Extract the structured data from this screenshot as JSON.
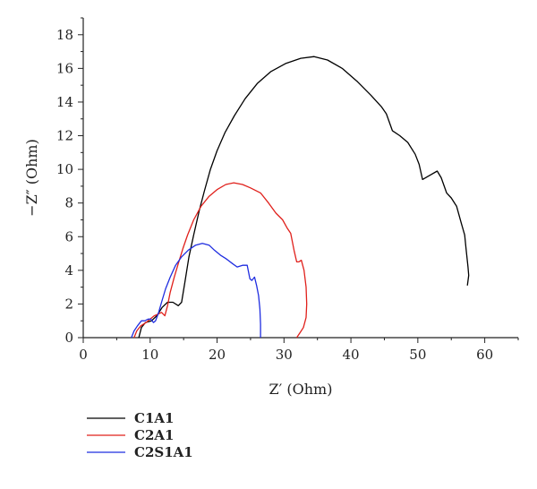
{
  "chart_data": {
    "type": "line",
    "xlabel": "Z′ (Ohm)",
    "ylabel": "−Z″ (Ohm)",
    "xlim": [
      0,
      65
    ],
    "ylim": [
      0,
      19
    ],
    "x_ticks": [
      0,
      10,
      20,
      30,
      40,
      50,
      60
    ],
    "y_ticks": [
      0,
      2,
      4,
      6,
      8,
      10,
      12,
      14,
      16,
      18
    ],
    "grid": false,
    "legend_position": "bottom-left, below plot",
    "series": [
      {
        "name": "C1A1",
        "color": "#000000",
        "points": [
          [
            8.3,
            0
          ],
          [
            8.7,
            0.6
          ],
          [
            9.3,
            0.9
          ],
          [
            10.2,
            1.0
          ],
          [
            11.0,
            1.3
          ],
          [
            11.8,
            1.8
          ],
          [
            12.6,
            2.1
          ],
          [
            13.4,
            2.1
          ],
          [
            14.2,
            1.9
          ],
          [
            14.7,
            2.1
          ],
          [
            15.2,
            3.3
          ],
          [
            15.8,
            4.8
          ],
          [
            16.5,
            6.1
          ],
          [
            17.3,
            7.5
          ],
          [
            18.1,
            8.7
          ],
          [
            19.0,
            10.0
          ],
          [
            20.0,
            11.1
          ],
          [
            21.2,
            12.2
          ],
          [
            22.6,
            13.2
          ],
          [
            24.2,
            14.2
          ],
          [
            26.0,
            15.1
          ],
          [
            28.0,
            15.8
          ],
          [
            30.3,
            16.3
          ],
          [
            32.5,
            16.6
          ],
          [
            34.5,
            16.7
          ],
          [
            36.5,
            16.5
          ],
          [
            38.7,
            16.0
          ],
          [
            41.0,
            15.2
          ],
          [
            43.0,
            14.4
          ],
          [
            44.6,
            13.7
          ],
          [
            45.3,
            13.3
          ],
          [
            46.2,
            12.3
          ],
          [
            47.3,
            12.0
          ],
          [
            48.5,
            11.6
          ],
          [
            49.6,
            10.9
          ],
          [
            50.2,
            10.3
          ],
          [
            50.7,
            9.4
          ],
          [
            51.6,
            9.6
          ],
          [
            52.9,
            9.9
          ],
          [
            53.5,
            9.5
          ],
          [
            54.3,
            8.6
          ],
          [
            55.0,
            8.3
          ],
          [
            55.8,
            7.8
          ],
          [
            56.5,
            6.8
          ],
          [
            57.0,
            6.1
          ],
          [
            57.2,
            5.3
          ],
          [
            57.5,
            4.2
          ],
          [
            57.6,
            3.7
          ],
          [
            57.4,
            3.1
          ]
        ]
      },
      {
        "name": "C2A1",
        "color": "#e0201b",
        "points": [
          [
            7.6,
            0
          ],
          [
            8.0,
            0.4
          ],
          [
            8.6,
            0.7
          ],
          [
            9.4,
            0.9
          ],
          [
            10.0,
            1.1
          ],
          [
            10.6,
            1.3
          ],
          [
            11.2,
            1.4
          ],
          [
            11.7,
            1.5
          ],
          [
            12.2,
            1.3
          ],
          [
            12.6,
            1.9
          ],
          [
            13.0,
            2.7
          ],
          [
            13.6,
            3.6
          ],
          [
            14.2,
            4.4
          ],
          [
            14.9,
            5.3
          ],
          [
            15.6,
            6.1
          ],
          [
            16.5,
            7.0
          ],
          [
            17.6,
            7.8
          ],
          [
            18.8,
            8.4
          ],
          [
            20.0,
            8.8
          ],
          [
            21.3,
            9.1
          ],
          [
            22.5,
            9.2
          ],
          [
            23.8,
            9.1
          ],
          [
            25.0,
            8.9
          ],
          [
            26.5,
            8.6
          ],
          [
            27.7,
            8.0
          ],
          [
            28.8,
            7.4
          ],
          [
            29.8,
            7.0
          ],
          [
            30.5,
            6.5
          ],
          [
            31.0,
            6.2
          ],
          [
            31.5,
            5.2
          ],
          [
            31.9,
            4.5
          ],
          [
            32.2,
            4.5
          ],
          [
            32.6,
            4.6
          ],
          [
            33.0,
            4.0
          ],
          [
            33.3,
            3.0
          ],
          [
            33.4,
            2.0
          ],
          [
            33.3,
            1.2
          ],
          [
            32.9,
            0.6
          ],
          [
            32.4,
            0.3
          ],
          [
            31.9,
            0
          ]
        ]
      },
      {
        "name": "C2S1A1",
        "color": "#1f2de0",
        "points": [
          [
            7.2,
            0
          ],
          [
            7.6,
            0.4
          ],
          [
            8.1,
            0.7
          ],
          [
            8.7,
            1.0
          ],
          [
            9.2,
            1.0
          ],
          [
            9.7,
            1.1
          ],
          [
            10.1,
            1.1
          ],
          [
            10.5,
            0.9
          ],
          [
            10.8,
            1.0
          ],
          [
            11.2,
            1.4
          ],
          [
            11.7,
            2.1
          ],
          [
            12.3,
            2.9
          ],
          [
            13.0,
            3.6
          ],
          [
            13.8,
            4.3
          ],
          [
            14.7,
            4.8
          ],
          [
            15.7,
            5.2
          ],
          [
            16.8,
            5.5
          ],
          [
            17.8,
            5.6
          ],
          [
            18.8,
            5.5
          ],
          [
            19.6,
            5.2
          ],
          [
            20.5,
            4.9
          ],
          [
            21.3,
            4.7
          ],
          [
            22.3,
            4.4
          ],
          [
            23.0,
            4.2
          ],
          [
            23.8,
            4.3
          ],
          [
            24.5,
            4.3
          ],
          [
            24.9,
            3.5
          ],
          [
            25.2,
            3.4
          ],
          [
            25.6,
            3.6
          ],
          [
            25.9,
            3.1
          ],
          [
            26.2,
            2.5
          ],
          [
            26.4,
            1.7
          ],
          [
            26.5,
            0.8
          ],
          [
            26.5,
            0
          ]
        ]
      }
    ]
  }
}
